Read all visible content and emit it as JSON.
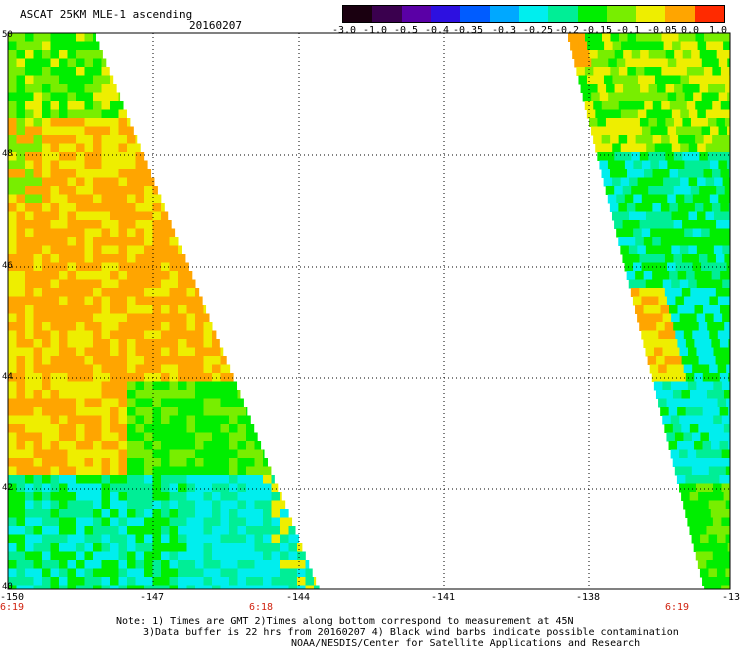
{
  "header": {
    "title": "ASCAT 25KM MLE-1 ascending",
    "date": "20160207"
  },
  "colorbar": {
    "labels": [
      "-3.0",
      "-1.0",
      "-0.5",
      "-0.4",
      "-0.35",
      "-0.3",
      "-0.25",
      "-0.2",
      "-0.15",
      "-0.1",
      "-0.05",
      "0.0",
      "1.0"
    ],
    "colors": [
      "#1a0010",
      "#3a004e",
      "#5a00a6",
      "#2d10e0",
      "#005cff",
      "#00a8ff",
      "#00eeee",
      "#00ee96",
      "#00ee00",
      "#78ee00",
      "#eeee00",
      "#ffa500",
      "#ff2a00"
    ]
  },
  "map": {
    "lat_labels": [
      "50",
      "48",
      "46",
      "44",
      "42",
      "40"
    ],
    "lon_labels": [
      "-150",
      "-147",
      "-144",
      "-141",
      "-138",
      "-13"
    ],
    "time_labels": [
      "6:19",
      "6:18",
      "6:19"
    ]
  },
  "notes": {
    "line1": "Note: 1) Times are GMT 2)Times along bottom correspond to measurement at 45N",
    "line2": "3)Data buffer is 22 hrs from 20160207 4) Black wind barbs indicate possible contamination",
    "line3": "NOAA/NESDIS/Center for Satellite Applications and Research"
  }
}
